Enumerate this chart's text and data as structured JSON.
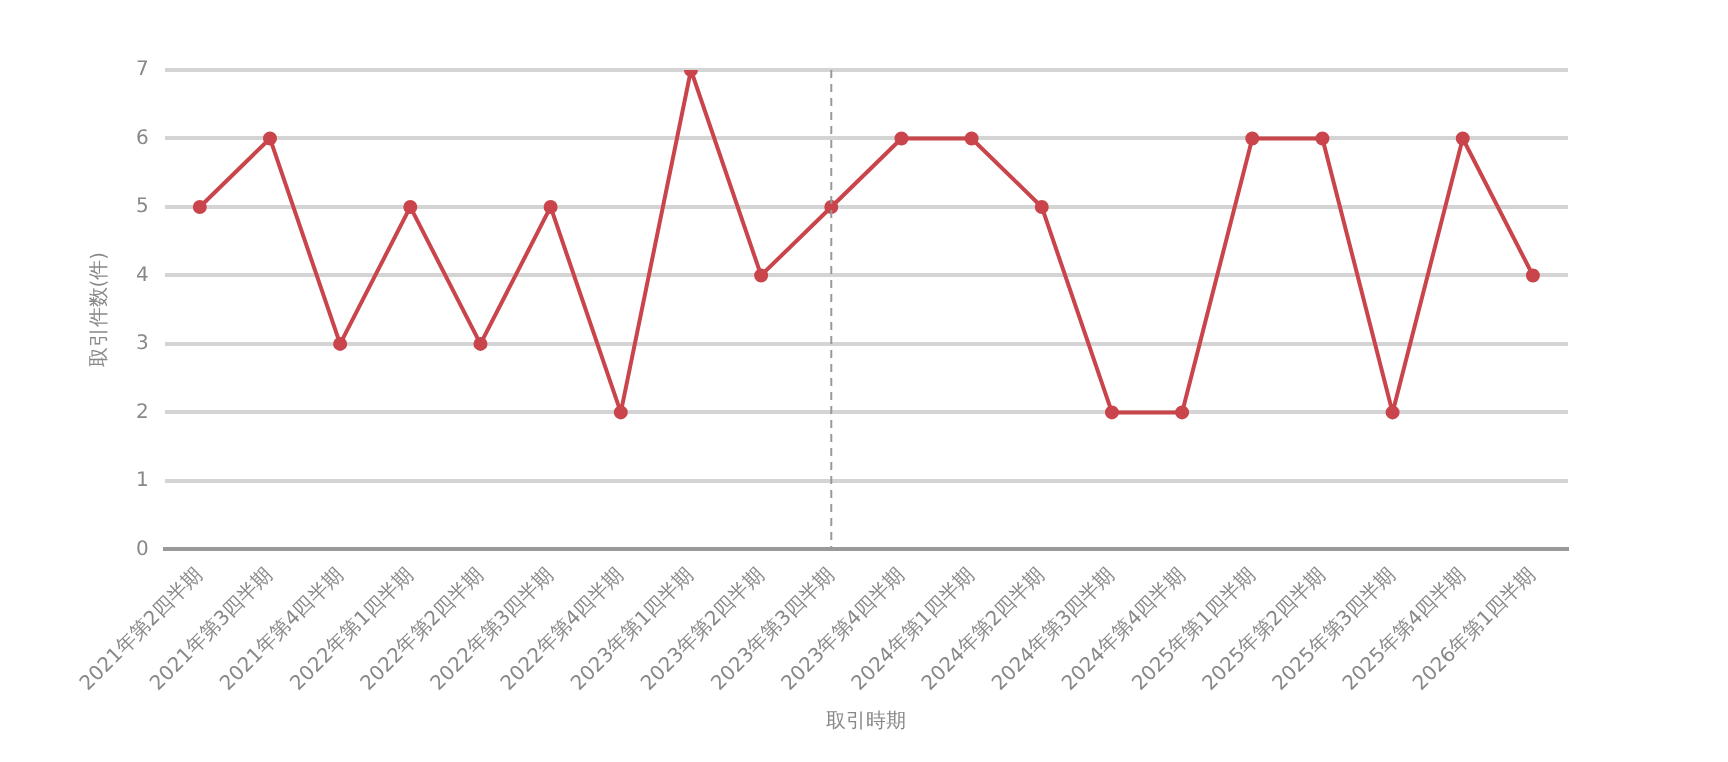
{
  "chart_data": {
    "type": "line",
    "xlabel": "取引時期",
    "ylabel": "取引件数(件)",
    "categories": [
      "2021年第2四半期",
      "2021年第3四半期",
      "2021年第4四半期",
      "2022年第1四半期",
      "2022年第2四半期",
      "2022年第3四半期",
      "2022年第4四半期",
      "2023年第1四半期",
      "2023年第2四半期",
      "2023年第3四半期",
      "2023年第4四半期",
      "2024年第1四半期",
      "2024年第2四半期",
      "2024年第3四半期",
      "2024年第4四半期",
      "2025年第1四半期",
      "2025年第2四半期",
      "2025年第3四半期",
      "2025年第4四半期",
      "2026年第1四半期"
    ],
    "series": [
      {
        "color": "#c9454b",
        "values": [
          5,
          6,
          3,
          5,
          3,
          5,
          2,
          7,
          4,
          5,
          6,
          6,
          5,
          2,
          2,
          6,
          6,
          2,
          6,
          4
        ]
      }
    ],
    "ylim": [
      0,
      7
    ],
    "yticks": [
      0,
      1,
      2,
      3,
      4,
      5,
      6,
      7
    ],
    "grid": "y",
    "legend": false,
    "marker": "circle",
    "line_style": "solid",
    "ref_lines": [
      {
        "axis": "x",
        "value": "2023年第3四半期",
        "color": "#999999",
        "line_style": "dashed"
      }
    ]
  }
}
